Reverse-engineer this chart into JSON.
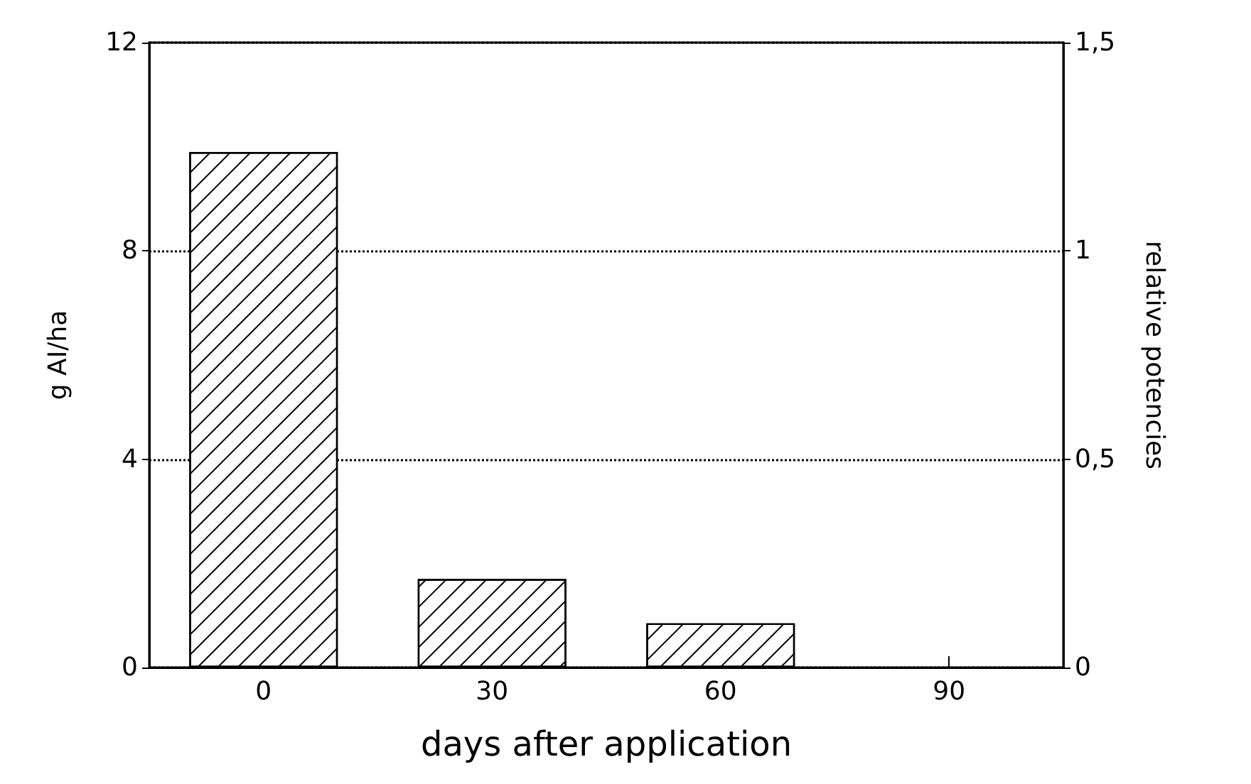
{
  "chart_data": {
    "type": "bar",
    "xlabel": "days after application",
    "ylabel": "g AI/ha",
    "y2label": "relative potencies",
    "categories": [
      "0",
      "30",
      "60",
      "90"
    ],
    "values": [
      9.9,
      1.7,
      0.85,
      null
    ],
    "color": "#000000",
    "ylim": [
      0,
      12
    ],
    "yticks": [
      0,
      4,
      8,
      12
    ],
    "y2lim": [
      0,
      1.5
    ],
    "y2ticks": [
      0,
      {
        "value": 0.5,
        "label": "0,5"
      },
      1,
      {
        "value": 1.5,
        "label": "1,5"
      }
    ],
    "grid": "y",
    "line_style": "dotted"
  }
}
